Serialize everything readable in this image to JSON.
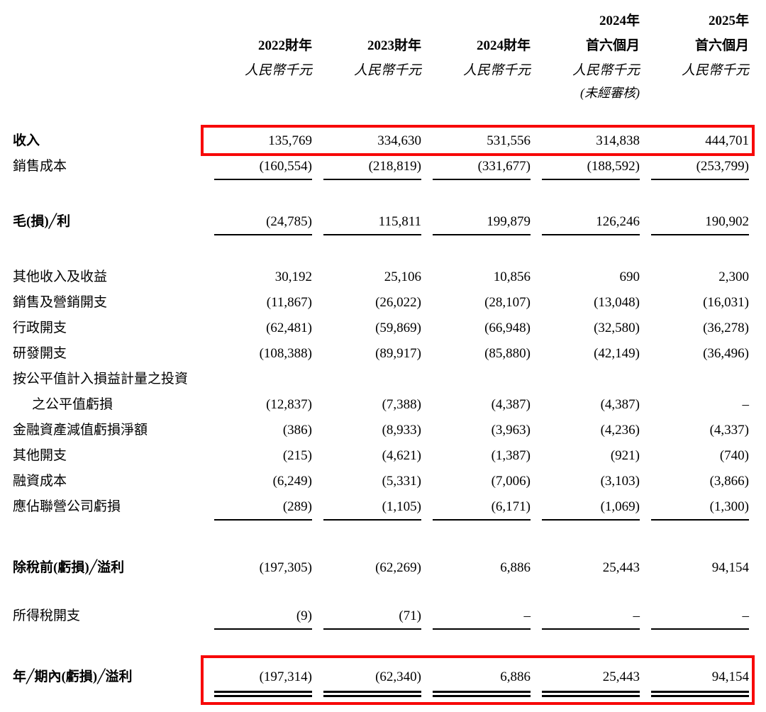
{
  "page": {
    "background": "#ffffff",
    "text_color": "#000000",
    "highlight_color": "#f70808"
  },
  "table": {
    "columns": [
      {
        "l1": "",
        "l2": "2022財年",
        "l3": "人民幣千元",
        "l4": ""
      },
      {
        "l1": "",
        "l2": "2023財年",
        "l3": "人民幣千元",
        "l4": ""
      },
      {
        "l1": "",
        "l2": "2024財年",
        "l3": "人民幣千元",
        "l4": ""
      },
      {
        "l1": "2024年",
        "l2": "首六個月",
        "l3": "人民幣千元",
        "l4": "(未經審核)"
      },
      {
        "l1": "2025年",
        "l2": "首六個月",
        "l3": "人民幣千元",
        "l4": ""
      }
    ],
    "rows": [
      {
        "label": "收入",
        "bold": true,
        "highlight": true,
        "values": [
          "135,769",
          "334,630",
          "531,556",
          "314,838",
          "444,701"
        ]
      },
      {
        "label": "銷售成本",
        "underline": "single",
        "values": [
          "(160,554)",
          "(218,819)",
          "(331,677)",
          "(188,592)",
          "(253,799)"
        ]
      },
      {
        "label": "毛(損)╱利",
        "bold": true,
        "gap": "lg",
        "underline": "single",
        "values": [
          "(24,785)",
          "115,811",
          "199,879",
          "126,246",
          "190,902"
        ]
      },
      {
        "label": "其他收入及收益",
        "gap": "lg",
        "values": [
          "30,192",
          "25,106",
          "10,856",
          "690",
          "2,300"
        ]
      },
      {
        "label": "銷售及營銷開支",
        "values": [
          "(11,867)",
          "(26,022)",
          "(28,107)",
          "(13,048)",
          "(16,031)"
        ]
      },
      {
        "label": "行政開支",
        "values": [
          "(62,481)",
          "(59,869)",
          "(66,948)",
          "(32,580)",
          "(36,278)"
        ]
      },
      {
        "label": "研發開支",
        "values": [
          "(108,388)",
          "(89,917)",
          "(85,880)",
          "(42,149)",
          "(36,496)"
        ]
      },
      {
        "label": "按公平值計入損益計量之投資",
        "label2": "之公平值虧損",
        "values": [
          "(12,837)",
          "(7,388)",
          "(4,387)",
          "(4,387)",
          "–"
        ]
      },
      {
        "label": "金融資產減值虧損淨額",
        "values": [
          "(386)",
          "(8,933)",
          "(3,963)",
          "(4,236)",
          "(4,337)"
        ]
      },
      {
        "label": "其他開支",
        "values": [
          "(215)",
          "(4,621)",
          "(1,387)",
          "(921)",
          "(740)"
        ]
      },
      {
        "label": "融資成本",
        "values": [
          "(6,249)",
          "(5,331)",
          "(7,006)",
          "(3,103)",
          "(3,866)"
        ]
      },
      {
        "label": "應佔聯營公司虧損",
        "underline": "single",
        "values": [
          "(289)",
          "(1,105)",
          "(6,171)",
          "(1,069)",
          "(1,300)"
        ]
      },
      {
        "label": "除稅前(虧損)╱溢利",
        "bold": true,
        "gap": "xl",
        "values": [
          "(197,305)",
          "(62,269)",
          "6,886",
          "25,443",
          "94,154"
        ]
      },
      {
        "label": "所得稅開支",
        "gap": "md",
        "underline": "single",
        "values": [
          "(9)",
          "(71)",
          "–",
          "–",
          "–"
        ]
      },
      {
        "label": "年╱期內(虧損)╱溢利",
        "bold": true,
        "gap": "xl",
        "underline": "double",
        "highlight": true,
        "values": [
          "(197,314)",
          "(62,340)",
          "6,886",
          "25,443",
          "94,154"
        ]
      }
    ]
  }
}
